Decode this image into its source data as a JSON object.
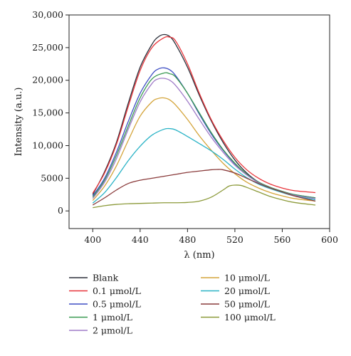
{
  "chart_data": {
    "type": "line",
    "xlabel": "λ (nm)",
    "ylabel": "Intensity (a.u.)",
    "xlim": [
      380,
      600
    ],
    "ylim": [
      -2700,
      30000
    ],
    "x_ticks": [
      400,
      440,
      480,
      520,
      560,
      600
    ],
    "y_ticks": [
      0,
      5000,
      10000,
      15000,
      20000,
      25000,
      30000
    ],
    "x_tick_labels": [
      "400",
      "440",
      "480",
      "520",
      "560",
      "600"
    ],
    "y_tick_labels": [
      "0",
      "5000",
      "10,000",
      "15,000",
      "20,000",
      "25,000",
      "30,000"
    ],
    "grid": false,
    "legend_placement": "below",
    "series": [
      {
        "name": "Blank",
        "color": "#2b2f3a",
        "x": [
          400,
          410,
          420,
          430,
          440,
          450,
          455,
          460,
          465,
          470,
          480,
          490,
          500,
          510,
          520,
          530,
          540,
          550,
          560,
          570,
          588
        ],
        "y": [
          2500,
          6000,
          10500,
          16500,
          22000,
          25500,
          26600,
          27000,
          26700,
          25500,
          22000,
          17700,
          13800,
          10500,
          7800,
          5800,
          4400,
          3500,
          2900,
          2400,
          1900
        ]
      },
      {
        "name": "0.1 μmol/L",
        "color": "#e8343a",
        "x": [
          400,
          410,
          420,
          430,
          440,
          450,
          460,
          465,
          470,
          480,
          490,
          500,
          510,
          520,
          530,
          540,
          550,
          560,
          570,
          588
        ],
        "y": [
          2700,
          5800,
          10200,
          16000,
          21500,
          25000,
          26500,
          26600,
          26000,
          22500,
          18000,
          14000,
          10800,
          8200,
          6300,
          5000,
          4100,
          3500,
          3100,
          2800
        ]
      },
      {
        "name": "0.5 μmol/L",
        "color": "#3f4fc4",
        "x": [
          400,
          410,
          420,
          430,
          440,
          450,
          455,
          460,
          465,
          470,
          480,
          490,
          500,
          510,
          520,
          530,
          540,
          550,
          560,
          570,
          588
        ],
        "y": [
          2300,
          5000,
          9000,
          13700,
          18000,
          20900,
          21700,
          21900,
          21600,
          20700,
          18000,
          14800,
          11800,
          9300,
          7200,
          5600,
          4400,
          3600,
          3000,
          2500,
          2000
        ]
      },
      {
        "name": "1 μmol/L",
        "color": "#3a9a52",
        "x": [
          400,
          410,
          420,
          430,
          440,
          450,
          460,
          465,
          470,
          480,
          490,
          500,
          510,
          520,
          530,
          540,
          550,
          560,
          570,
          588
        ],
        "y": [
          2100,
          4700,
          8500,
          13000,
          17300,
          20200,
          21100,
          21000,
          20500,
          18000,
          15000,
          12000,
          9400,
          7300,
          5600,
          4400,
          3600,
          3000,
          2500,
          2000
        ]
      },
      {
        "name": "2 μmol/L",
        "color": "#a07cc8",
        "x": [
          400,
          410,
          420,
          430,
          440,
          450,
          455,
          460,
          465,
          470,
          480,
          490,
          500,
          510,
          520,
          530,
          540,
          550,
          560,
          570,
          588
        ],
        "y": [
          1900,
          4400,
          8000,
          12500,
          16700,
          19500,
          20200,
          20300,
          20000,
          19200,
          16800,
          14000,
          11300,
          9000,
          7000,
          5500,
          4300,
          3500,
          2900,
          2400,
          1900
        ]
      },
      {
        "name": "10 μmol/L",
        "color": "#d4a43a",
        "x": [
          400,
          410,
          420,
          430,
          440,
          450,
          455,
          460,
          465,
          470,
          480,
          490,
          500,
          510,
          520,
          530,
          540,
          550,
          560,
          570,
          588
        ],
        "y": [
          1600,
          3800,
          6900,
          10800,
          14500,
          16700,
          17200,
          17300,
          17000,
          16200,
          14000,
          11500,
          9300,
          7300,
          5700,
          4400,
          3500,
          2800,
          2300,
          1900,
          1500
        ]
      },
      {
        "name": "20 μmol/L",
        "color": "#2ab3c6",
        "x": [
          400,
          410,
          420,
          430,
          440,
          450,
          460,
          465,
          470,
          480,
          490,
          500,
          510,
          520,
          530,
          540,
          550,
          560,
          570,
          588
        ],
        "y": [
          1200,
          2800,
          5100,
          7700,
          9900,
          11600,
          12500,
          12600,
          12400,
          11400,
          10300,
          9200,
          7900,
          6400,
          5100,
          4100,
          3400,
          2800,
          2300,
          1700
        ]
      },
      {
        "name": "50 μmol/L",
        "color": "#8a3b3b",
        "x": [
          400,
          410,
          420,
          430,
          440,
          450,
          460,
          470,
          480,
          490,
          500,
          505,
          510,
          520,
          530,
          540,
          550,
          560,
          570,
          588
        ],
        "y": [
          900,
          2000,
          3200,
          4200,
          4700,
          5000,
          5300,
          5600,
          5900,
          6100,
          6300,
          6350,
          6300,
          5800,
          5000,
          4200,
          3500,
          2900,
          2300,
          1500
        ]
      },
      {
        "name": "100 μmol/L",
        "color": "#8c9a3a",
        "x": [
          400,
          410,
          420,
          430,
          440,
          450,
          460,
          470,
          480,
          490,
          500,
          510,
          515,
          520,
          525,
          530,
          540,
          550,
          560,
          570,
          588
        ],
        "y": [
          500,
          800,
          1000,
          1100,
          1150,
          1200,
          1250,
          1250,
          1300,
          1500,
          2100,
          3200,
          3800,
          3950,
          3900,
          3600,
          2900,
          2200,
          1700,
          1300,
          900
        ]
      }
    ]
  }
}
